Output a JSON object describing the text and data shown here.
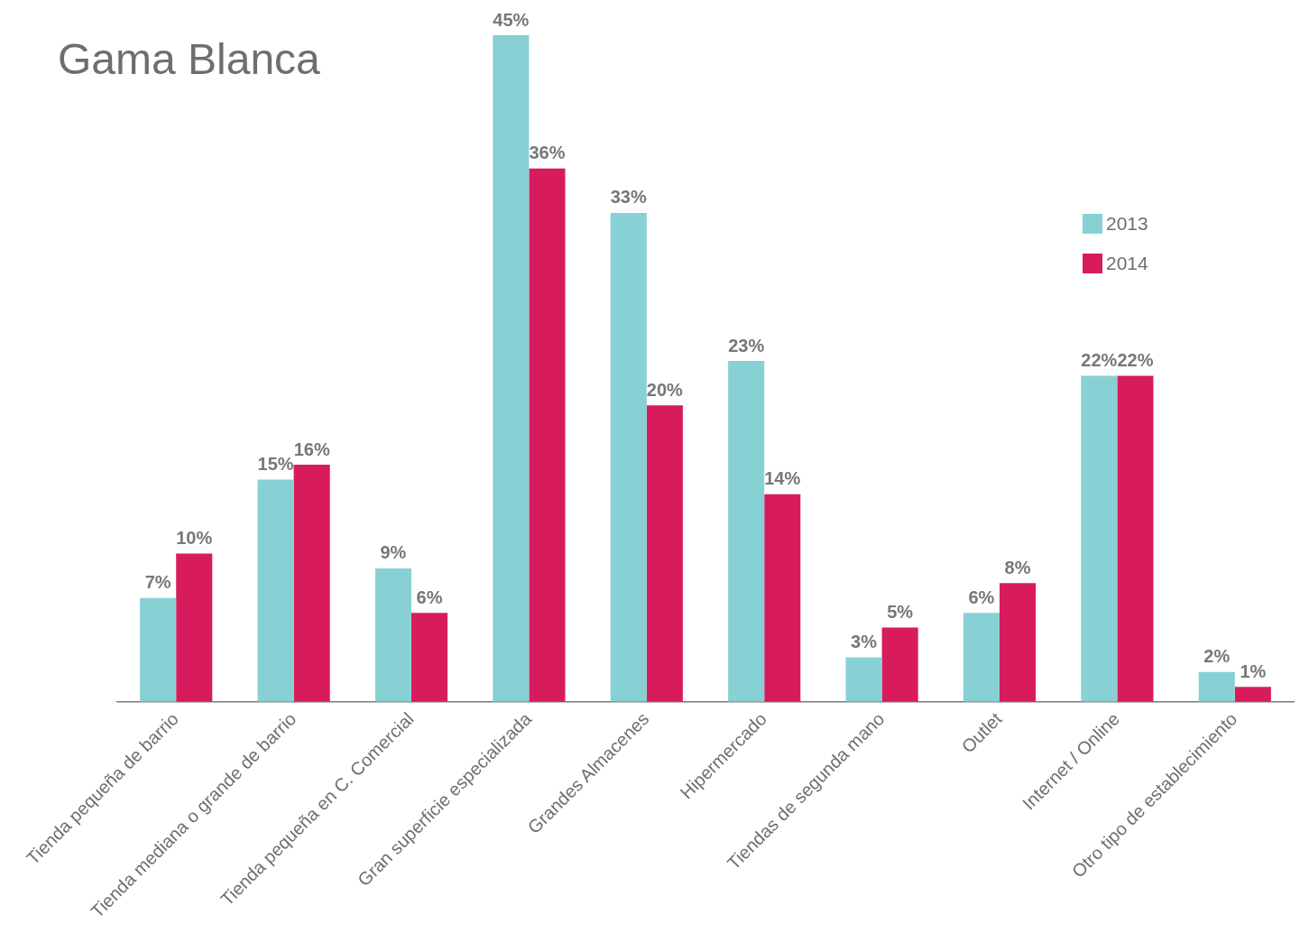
{
  "chart_data": {
    "type": "bar",
    "title": "Gama Blanca",
    "categories": [
      "Tienda pequeña de barrio",
      "Tienda mediana o grande de barrio",
      "Tienda pequeña en C. Comercial",
      "Gran superficie especializada",
      "Grandes Almacenes",
      "Hipermercado",
      "Tiendas de segunda mano",
      "Outlet",
      "Internet / Online",
      "Otro tipo de establecimiento"
    ],
    "series": [
      {
        "name": "2013",
        "color": "#87d1d4",
        "values": [
          7,
          15,
          9,
          45,
          33,
          23,
          3,
          6,
          22,
          2
        ],
        "value_labels": [
          "7%",
          "15%",
          "9%",
          "45%",
          "33%",
          "23%",
          "3%",
          "6%",
          "22%",
          "2%"
        ]
      },
      {
        "name": "2014",
        "color": "#d81b5c",
        "values": [
          10,
          16,
          6,
          36,
          20,
          14,
          5,
          8,
          22,
          1
        ],
        "value_labels": [
          "10%",
          "16%",
          "6%",
          "36%",
          "20%",
          "14%",
          "5%",
          "8%",
          "22%",
          "1%"
        ]
      }
    ],
    "ylim": [
      0,
      45
    ],
    "tick_labels": "x",
    "legend": "top right"
  }
}
